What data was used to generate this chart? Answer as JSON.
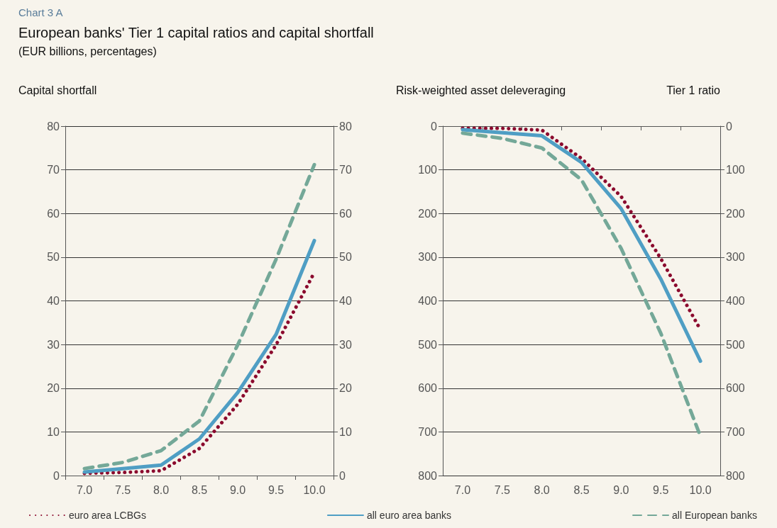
{
  "chart_data": [
    {
      "type": "line",
      "title": "European banks' Tier 1 capital ratios and capital shortfall",
      "subtitle": "(EUR billions, percentages)",
      "annotations": [
        "Chart 3 A"
      ],
      "ylabel": "Capital shortfall",
      "categories": [
        "7.0",
        "7.5",
        "8.0",
        "8.5",
        "9.0",
        "9.5",
        "10.0"
      ],
      "ylim": [
        0,
        80
      ],
      "yticks": [
        0,
        10,
        20,
        30,
        40,
        50,
        60,
        70,
        80
      ],
      "y2lim": [
        0,
        80
      ],
      "y2ticks": [
        0,
        10,
        20,
        30,
        40,
        50,
        60,
        70,
        80
      ],
      "grid": "y",
      "legend": "bottom",
      "marker": "none",
      "series": [
        {
          "name": "euro area LCBGs",
          "color": "#8b0a2e",
          "line_style": "dotted",
          "values": [
            0.5,
            0.7,
            1.1,
            6.2,
            16.3,
            29.9,
            46.5
          ]
        },
        {
          "name": "all euro area banks",
          "color": "#4f9ec4",
          "line_style": "solid",
          "values": [
            0.8,
            1.6,
            2.4,
            8.4,
            19,
            32.3,
            53.8
          ]
        },
        {
          "name": "all European banks",
          "color": "#74a898",
          "line_style": "dashed",
          "values": [
            1.6,
            3,
            5.7,
            12.5,
            29.9,
            49.5,
            71.2
          ]
        }
      ]
    },
    {
      "type": "line",
      "ylabel": "Risk-weighted asset deleveraging",
      "xlabel": "Tier 1 ratio",
      "categories": [
        "7.0",
        "7.5",
        "8.0",
        "8.5",
        "9.0",
        "9.5",
        "10.0"
      ],
      "ylim": [
        800,
        0
      ],
      "yticks": [
        0,
        100,
        200,
        300,
        400,
        500,
        600,
        700,
        800
      ],
      "y2lim": [
        800,
        0
      ],
      "y2ticks": [
        0,
        100,
        200,
        300,
        400,
        500,
        600,
        700,
        800
      ],
      "grid": "y",
      "marker": "none",
      "series": [
        {
          "color": "#8b0a2e",
          "line_style": "dotted",
          "values": [
            5,
            5,
            9,
            74,
            161,
            303,
            466
          ]
        },
        {
          "color": "#4f9ec4",
          "line_style": "solid",
          "values": [
            8,
            15,
            22,
            83,
            189,
            350,
            538
          ]
        },
        {
          "color": "#74a898",
          "line_style": "dashed",
          "values": [
            16,
            28,
            50,
            123,
            280,
            474,
            710
          ]
        }
      ]
    }
  ]
}
